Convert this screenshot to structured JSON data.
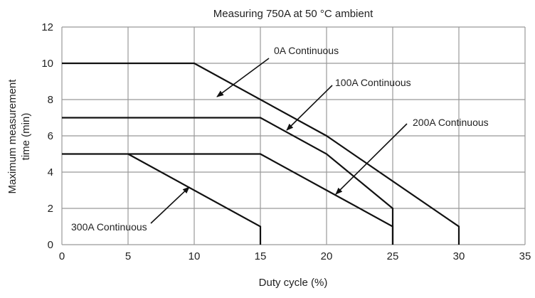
{
  "chart_data": {
    "type": "line",
    "title": "Measuring 750A at 50 °C ambient",
    "xlabel": "Duty cycle (%)",
    "ylabel": "Maximum measurement time (min)",
    "xlim": [
      0,
      35
    ],
    "ylim": [
      0,
      12
    ],
    "xticks": [
      0,
      5,
      10,
      15,
      20,
      25,
      30,
      35
    ],
    "yticks": [
      0,
      2,
      4,
      6,
      8,
      10,
      12
    ],
    "grid": true,
    "series": [
      {
        "name": "0A Continuous",
        "points": [
          [
            0,
            10
          ],
          [
            10,
            10
          ],
          [
            20,
            6
          ],
          [
            21,
            5.5
          ],
          [
            30,
            1
          ],
          [
            30,
            0
          ]
        ]
      },
      {
        "name": "100A Continuous",
        "points": [
          [
            0,
            7
          ],
          [
            15,
            7
          ],
          [
            20,
            5
          ],
          [
            25,
            2
          ],
          [
            25,
            0
          ]
        ]
      },
      {
        "name": "200A Continuous",
        "points": [
          [
            0,
            5
          ],
          [
            15,
            5
          ],
          [
            20,
            3
          ],
          [
            25,
            1
          ],
          [
            25,
            0
          ]
        ]
      },
      {
        "name": "300A Continuous",
        "points": [
          [
            5,
            5
          ],
          [
            15,
            1
          ],
          [
            15,
            0
          ]
        ]
      }
    ],
    "line_color": "#111111",
    "grid_color": "#999999"
  }
}
